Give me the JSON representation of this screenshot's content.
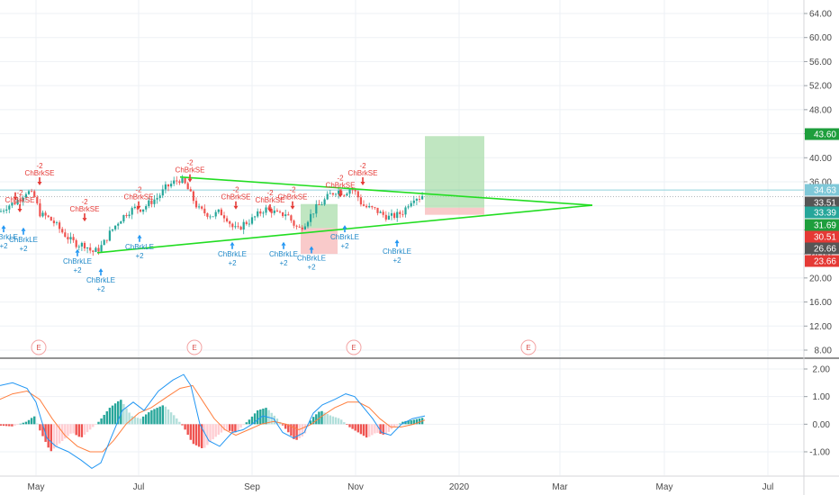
{
  "chart_data": [
    {
      "type": "candlestick",
      "title": "",
      "x_axis_labels": [
        "May",
        "Jul",
        "Sep",
        "Nov",
        "2020",
        "Mar",
        "May",
        "Jul"
      ],
      "y_axis_labels": [
        "64.00",
        "60.00",
        "56.00",
        "52.00",
        "48.00",
        "44.00",
        "40.00",
        "36.00",
        "32.00",
        "28.00",
        "24.00",
        "20.00",
        "16.00",
        "12.00",
        "8.00"
      ],
      "ylim": [
        6,
        66
      ],
      "y_scale": "linear",
      "grid": true,
      "price_tags": [
        {
          "value": "43.60",
          "color": "#1e9e3c"
        },
        {
          "value": "34.63",
          "color": "#7fc8d8"
        },
        {
          "value": "33.51",
          "color": "#555555"
        },
        {
          "value": "33.39",
          "color": "#26a69a"
        },
        {
          "value": "31.69",
          "color": "#1e9e3c"
        },
        {
          "value": "30.51",
          "color": "#e53935"
        },
        {
          "value": "26.66",
          "color": "#555555"
        },
        {
          "value": "23.66",
          "color": "#e53935"
        }
      ],
      "triangle_pattern": {
        "upper_line": [
          [
            36.8,
            "Jul"
          ],
          [
            32.1,
            "apex"
          ]
        ],
        "lower_line": [
          [
            24.2,
            "Jun"
          ],
          [
            32.1,
            "apex"
          ]
        ],
        "color": "#22dd22"
      },
      "positions": [
        {
          "type": "long",
          "entry": 31.69,
          "target": 43.6,
          "stop": 30.51
        },
        {
          "type": "long",
          "entry": 28.3,
          "target": 32.3,
          "stop": 24.0
        }
      ],
      "strategy_labels": {
        "short_signal": "ChBrkSE",
        "long_signal": "ChBrkLE",
        "short_qty": "-2",
        "long_qty": "+2"
      },
      "earnings_marker": "E",
      "earnings_count": 4,
      "colors": {
        "up": "#26a69a",
        "down": "#ef5350",
        "grid": "#eef1f5"
      }
    },
    {
      "type": "macd",
      "y_axis_labels": [
        "2.00",
        "1.00",
        "0.00",
        "-1.00"
      ],
      "ylim": [
        -2.0,
        2.3
      ],
      "grid": true,
      "series": [
        {
          "name": "",
          "color": "#2196f3"
        },
        {
          "name": "",
          "color": "#ff7f3f"
        }
      ],
      "histogram_colors": {
        "pos_strong": "#26a69a",
        "pos_weak": "#b2dfdb",
        "neg_strong": "#ef5350",
        "neg_weak": "#ffcdd2"
      }
    }
  ]
}
